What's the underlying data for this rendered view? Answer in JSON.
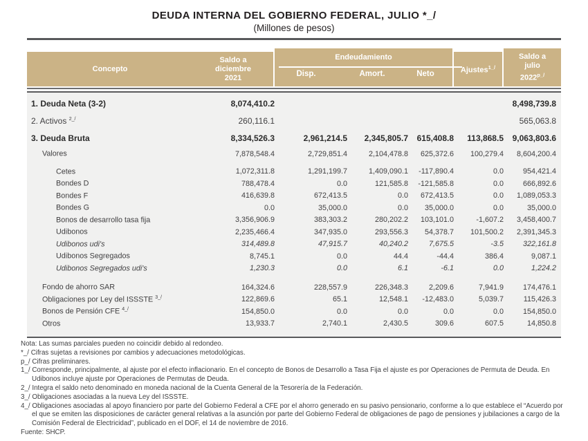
{
  "title": "DEUDA INTERNA DEL GOBIERNO FEDERAL, JULIO *_/",
  "subtitle": "(Millones de pesos)",
  "colors": {
    "header_bg": "#cbb386",
    "header_text": "#ffffff",
    "body_bg": "#f1f1f0",
    "rule": "#58595b",
    "text": "#414042"
  },
  "table": {
    "header": {
      "concepto": "Concepto",
      "saldo_dic": "Saldo a\ndiciembre\n2021",
      "endeudamiento": "Endeudamiento",
      "disp": "Disp.",
      "amort": "Amort.",
      "neto": "Neto",
      "ajustes": "Ajustes",
      "ajustes_sup": "1_/",
      "saldo_jul": "Saldo a\njulio",
      "saldo_jul_year": "2022",
      "saldo_jul_sup": "p_/"
    },
    "rows": [
      {
        "label": "1. Deuda Neta (3-2)",
        "sup": "",
        "values": [
          "8,074,410.2",
          "",
          "",
          "",
          "",
          "8,498,739.8"
        ],
        "bold": true,
        "italic": false,
        "indent": 0,
        "size": "lg",
        "gap": ""
      },
      {
        "label": "2. Activos ",
        "sup": "2_/",
        "values": [
          "260,116.1",
          "",
          "",
          "",
          "",
          "565,063.8"
        ],
        "bold": false,
        "italic": false,
        "indent": 0,
        "size": "lg",
        "gap": ""
      },
      {
        "label": "3.  Deuda Bruta",
        "sup": "",
        "values": [
          "8,334,526.3",
          "2,961,214.5",
          "2,345,805.7",
          "615,408.8",
          "113,868.5",
          "9,063,803.6"
        ],
        "bold": true,
        "italic": false,
        "indent": 0,
        "size": "lg",
        "gap": ""
      },
      {
        "label": "Valores",
        "sup": "",
        "values": [
          "7,878,548.4",
          "2,729,851.4",
          "2,104,478.8",
          "625,372.6",
          "100,279.4",
          "8,604,200.4"
        ],
        "bold": false,
        "italic": false,
        "indent": 1,
        "size": "sm",
        "gap": "sm"
      },
      {
        "label": "Cetes",
        "sup": "",
        "values": [
          "1,072,311.8",
          "1,291,199.7",
          "1,409,090.1",
          "-117,890.4",
          "0.0",
          "954,421.4"
        ],
        "bold": false,
        "italic": false,
        "indent": 2,
        "size": "sm",
        "gap": "md"
      },
      {
        "label": "Bondes D",
        "sup": "",
        "values": [
          "788,478.4",
          "0.0",
          "121,585.8",
          "-121,585.8",
          "0.0",
          "666,892.6"
        ],
        "bold": false,
        "italic": false,
        "indent": 2,
        "size": "sm",
        "gap": ""
      },
      {
        "label": "Bondes F",
        "sup": "",
        "values": [
          "416,639.8",
          "672,413.5",
          "0.0",
          "672,413.5",
          "0.0",
          "1,089,053.3"
        ],
        "bold": false,
        "italic": false,
        "indent": 2,
        "size": "sm",
        "gap": ""
      },
      {
        "label": "Bondes G",
        "sup": "",
        "values": [
          "0.0",
          "35,000.0",
          "0.0",
          "35,000.0",
          "0.0",
          "35,000.0"
        ],
        "bold": false,
        "italic": false,
        "indent": 2,
        "size": "sm",
        "gap": ""
      },
      {
        "label": "Bonos de desarrollo tasa fija",
        "sup": "",
        "values": [
          "3,356,906.9",
          "383,303.2",
          "280,202.2",
          "103,101.0",
          "-1,607.2",
          "3,458,400.7"
        ],
        "bold": false,
        "italic": false,
        "indent": 2,
        "size": "sm",
        "gap": ""
      },
      {
        "label": "Udibonos",
        "sup": "",
        "values": [
          "2,235,466.4",
          "347,935.0",
          "293,556.3",
          "54,378.7",
          "101,500.2",
          "2,391,345.3"
        ],
        "bold": false,
        "italic": false,
        "indent": 2,
        "size": "sm",
        "gap": ""
      },
      {
        "label": "Udibonos udi's",
        "sup": "",
        "values": [
          "314,489.8",
          "47,915.7",
          "40,240.2",
          "7,675.5",
          "-3.5",
          "322,161.8"
        ],
        "bold": false,
        "italic": true,
        "indent": 2,
        "size": "sm",
        "gap": ""
      },
      {
        "label": "Udibonos Segregados",
        "sup": "",
        "values": [
          "8,745.1",
          "0.0",
          "44.4",
          "-44.4",
          "386.4",
          "9,087.1"
        ],
        "bold": false,
        "italic": false,
        "indent": 2,
        "size": "sm",
        "gap": ""
      },
      {
        "label": "Udibonos Segregados udi's",
        "sup": "",
        "values": [
          "1,230.3",
          "0.0",
          "6.1",
          "-6.1",
          "0.0",
          "1,224.2"
        ],
        "bold": false,
        "italic": true,
        "indent": 2,
        "size": "sm",
        "gap": ""
      },
      {
        "label": "Fondo de ahorro SAR",
        "sup": "",
        "values": [
          "164,324.6",
          "228,557.9",
          "226,348.3",
          "2,209.6",
          "7,941.9",
          "174,476.1"
        ],
        "bold": false,
        "italic": false,
        "indent": 1,
        "size": "sm",
        "gap": "lg"
      },
      {
        "label": "Obligaciones por Ley del ISSSTE ",
        "sup": "3_/",
        "values": [
          "122,869.6",
          "65.1",
          "12,548.1",
          "-12,483.0",
          "5,039.7",
          "115,426.3"
        ],
        "bold": false,
        "italic": false,
        "indent": 1,
        "size": "sm",
        "gap": ""
      },
      {
        "label": "Bonos de Pensión CFE ",
        "sup": "4_/",
        "values": [
          "154,850.0",
          "0.0",
          "0.0",
          "0.0",
          "0.0",
          "154,850.0"
        ],
        "bold": false,
        "italic": false,
        "indent": 1,
        "size": "sm",
        "gap": ""
      },
      {
        "label": "Otros",
        "sup": "",
        "values": [
          "13,933.7",
          "2,740.1",
          "2,430.5",
          "309.6",
          "607.5",
          "14,850.8"
        ],
        "bold": false,
        "italic": false,
        "indent": 1,
        "size": "sm",
        "gap": ""
      }
    ]
  },
  "footnotes": [
    "Nota: Las sumas parciales pueden no coincidir debido al redondeo.",
    "*_/ Cifras sujetas a revisiones por cambios y adecuaciones metodológicas.",
    "p_/ Cifras preliminares.",
    "1_/ Corresponde, principalmente, al ajuste por el efecto inflacionario. En el concepto de Bonos de Desarrollo a Tasa Fija el ajuste es por Operaciones de Permuta de Deuda.  En Udibonos incluye ajuste por Operaciones de Permutas de Deuda.",
    "2_/ Integra el saldo neto denominado en moneda nacional de la Cuenta General de la Tesorería de la Federación.",
    "3_/ Obligaciones asociadas a la nueva Ley del ISSSTE.",
    "4_/ Obligaciones asociadas al apoyo financiero por parte del Gobierno Federal a CFE por el ahorro generado en su pasivo pensionario, conforme a lo que establece el “Acuerdo por el que se emiten las disposiciones de carácter general relativas a la asunción por parte del Gobierno Federal de obligaciones de pago de pensiones y jubilaciones a cargo de la Comisión Federal de Electricidad”, publicado en el DOF, el 14 de noviembre de 2016.",
    "Fuente: SHCP."
  ]
}
